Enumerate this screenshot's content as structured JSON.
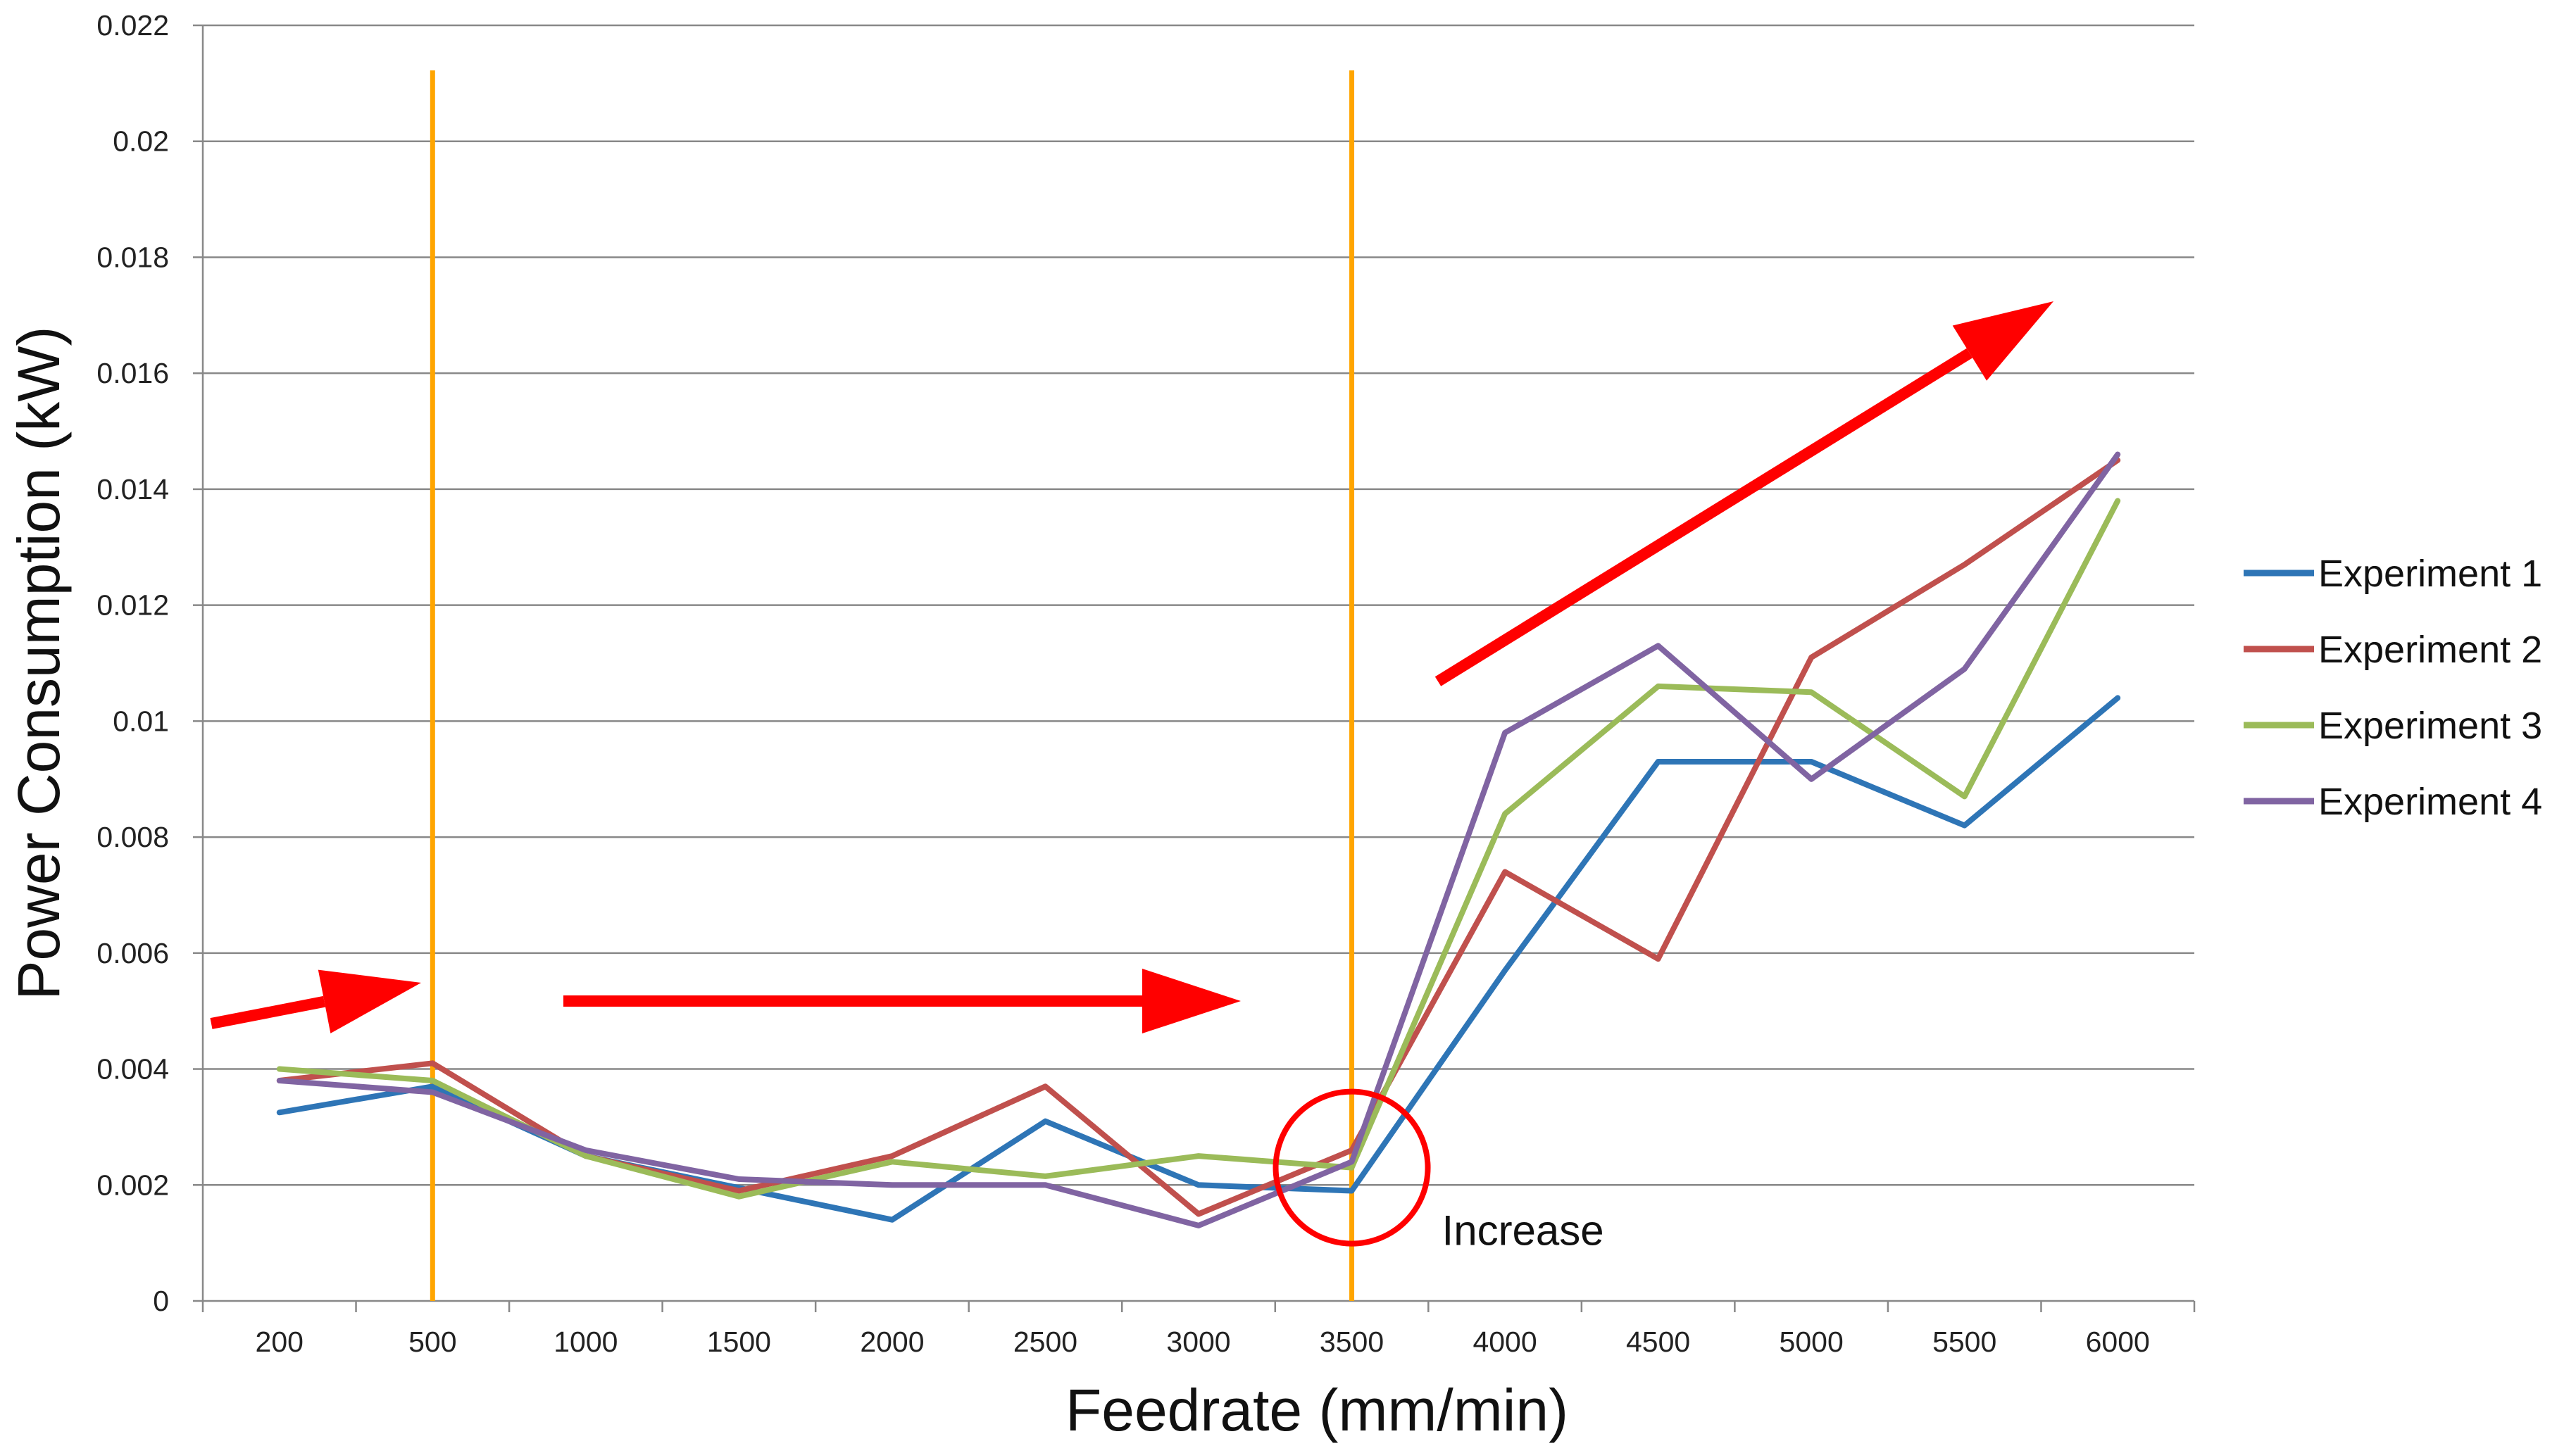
{
  "chart_data": {
    "type": "line",
    "title": "",
    "xlabel": "Feedrate (mm/min)",
    "ylabel": "Power Consumption (kW)",
    "categories": [
      "200",
      "500",
      "1000",
      "1500",
      "2000",
      "2500",
      "3000",
      "3500",
      "4000",
      "4500",
      "5000",
      "5500",
      "6000"
    ],
    "ylim": [
      0,
      0.022
    ],
    "yticks": [
      "0",
      "0.002",
      "0.004",
      "0.006",
      "0.008",
      "0.01",
      "0.012",
      "0.014",
      "0.016",
      "0.018",
      "0.02",
      "0.022"
    ],
    "grid": true,
    "legend_position": "right",
    "series": [
      {
        "name": "Experiment 1",
        "color": "#2e75b6",
        "values": [
          0.00325,
          0.0037,
          0.0025,
          0.00195,
          0.0014,
          0.0031,
          0.002,
          0.0019,
          0.0057,
          0.0093,
          0.0093,
          0.0082,
          0.0104
        ]
      },
      {
        "name": "Experiment 2",
        "color": "#c0504d",
        "values": [
          0.0038,
          0.0041,
          0.0025,
          0.0019,
          0.0025,
          0.0037,
          0.0015,
          0.0026,
          0.0074,
          0.0059,
          0.0111,
          0.0127,
          0.0145
        ]
      },
      {
        "name": "Experiment 3",
        "color": "#9bbb59",
        "values": [
          0.004,
          0.0038,
          0.0025,
          0.0018,
          0.0024,
          0.00215,
          0.0025,
          0.0023,
          0.0084,
          0.0106,
          0.0105,
          0.0087,
          0.0138
        ]
      },
      {
        "name": "Experiment 4",
        "color": "#8064a2",
        "values": [
          0.0038,
          0.0036,
          0.0026,
          0.0021,
          0.002,
          0.002,
          0.0013,
          0.0024,
          0.0098,
          0.0113,
          0.009,
          0.0109,
          0.0146
        ]
      }
    ],
    "reference_lines": [
      {
        "x": "500",
        "color": "#ffa500"
      },
      {
        "x": "3500",
        "color": "#ffa500"
      }
    ],
    "annotations": [
      {
        "text": "Increase",
        "x": "3500",
        "y": 0.0023,
        "marker": "circle",
        "color": "#ff0000"
      }
    ]
  }
}
